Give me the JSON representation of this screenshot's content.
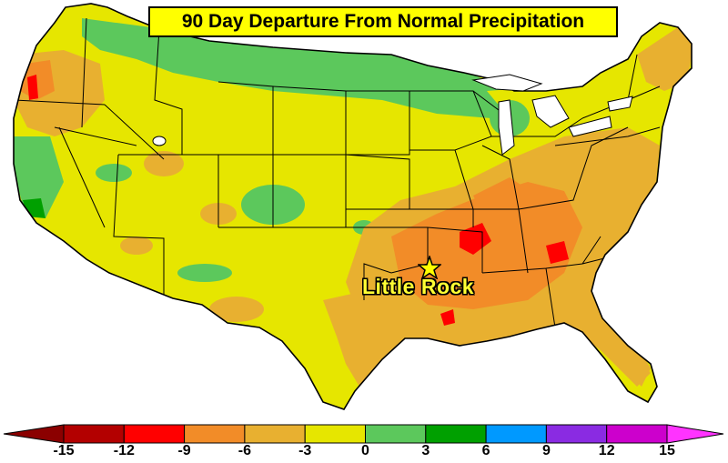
{
  "title": "90 Day Departure From Normal Precipitation",
  "marker": {
    "label": "Little Rock",
    "icon": "star-icon"
  },
  "legend": {
    "ticks": [
      "-15",
      "-12",
      "-9",
      "-6",
      "-3",
      "0",
      "3",
      "6",
      "9",
      "12",
      "15"
    ],
    "bins": [
      {
        "range": "-15 to -12",
        "color": "#b30000"
      },
      {
        "range": "-12 to -9",
        "color": "#ff0000"
      },
      {
        "range": "-9 to -6",
        "color": "#f28c28"
      },
      {
        "range": "-6 to -3",
        "color": "#e8b030"
      },
      {
        "range": "-3 to 0",
        "color": "#e6e600"
      },
      {
        "range": "0 to 3",
        "color": "#5cc85c"
      },
      {
        "range": "3 to 6",
        "color": "#00a000"
      },
      {
        "range": "6 to 9",
        "color": "#0099ff"
      },
      {
        "range": "9 to 12",
        "color": "#8a2be2"
      },
      {
        "range": "12 to 15",
        "color": "#cc00cc"
      }
    ],
    "low_arrow_color": "#8b0000",
    "high_arrow_color": "#ff33ff"
  }
}
